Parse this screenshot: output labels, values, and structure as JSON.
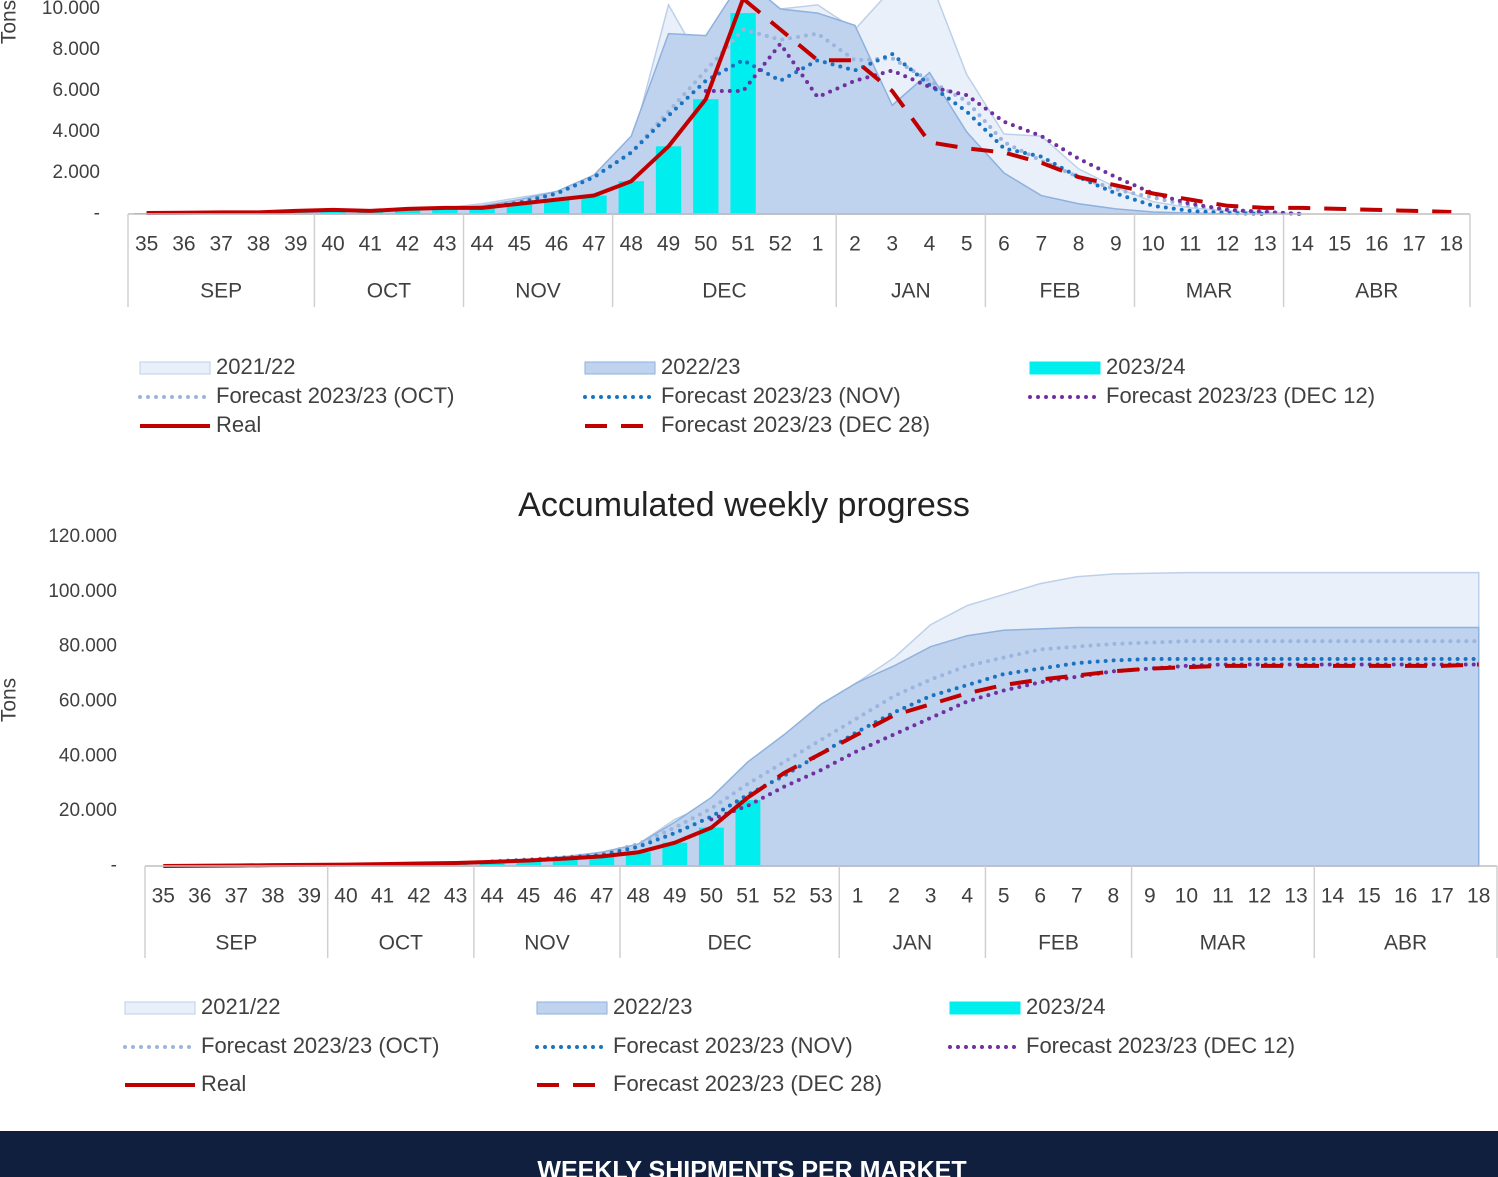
{
  "chart_data": [
    {
      "type": "combo",
      "y_label": "Tons",
      "categories": [
        "35",
        "36",
        "37",
        "38",
        "39",
        "40",
        "41",
        "42",
        "43",
        "44",
        "45",
        "46",
        "47",
        "48",
        "49",
        "50",
        "51",
        "52",
        "1",
        "2",
        "3",
        "4",
        "5",
        "6",
        "7",
        "8",
        "9",
        "10",
        "11",
        "12",
        "13",
        "14",
        "15",
        "16",
        "17",
        "18"
      ],
      "groups": [
        "SEP",
        "SEP",
        "SEP",
        "SEP",
        "SEP",
        "OCT",
        "OCT",
        "OCT",
        "OCT",
        "NOV",
        "NOV",
        "NOV",
        "NOV",
        "DEC",
        "DEC",
        "DEC",
        "DEC",
        "DEC",
        "DEC",
        "JAN",
        "JAN",
        "JAN",
        "JAN",
        "FEB",
        "FEB",
        "FEB",
        "FEB",
        "MAR",
        "MAR",
        "MAR",
        "MAR",
        "ABR",
        "ABR",
        "ABR",
        "ABR",
        "ABR"
      ],
      "ylim": [
        0,
        12000
      ],
      "yticks": [
        {
          "value": 0,
          "label": "-"
        },
        {
          "value": 2000,
          "label": "2.000"
        },
        {
          "value": 4000,
          "label": "4.000"
        },
        {
          "value": 6000,
          "label": "6.000"
        },
        {
          "value": 8000,
          "label": "8.000"
        },
        {
          "value": 10000,
          "label": "10.000"
        }
      ],
      "series": [
        {
          "name": "2021/22",
          "style": "area",
          "color": "#eaf0fa",
          "stroke": "#bdd0ea",
          "values": [
            50,
            50,
            80,
            80,
            100,
            150,
            150,
            250,
            300,
            500,
            800,
            1100,
            1600,
            3300,
            10200,
            7000,
            11500,
            10000,
            10200,
            9000,
            11000,
            11500,
            6800,
            3900,
            3800,
            2200,
            1300,
            600,
            300,
            150,
            80,
            0,
            null,
            null,
            null,
            null
          ]
        },
        {
          "name": "2022/23",
          "style": "area",
          "color": "#bfd3ee",
          "stroke": "#8eb1de",
          "values": [
            30,
            40,
            50,
            60,
            80,
            100,
            150,
            200,
            250,
            400,
            700,
            1100,
            1900,
            3800,
            8800,
            8700,
            11500,
            10000,
            9800,
            9200,
            5300,
            6900,
            4000,
            2000,
            900,
            500,
            250,
            100,
            50,
            0,
            null,
            null,
            null,
            null,
            null,
            null
          ]
        },
        {
          "name": "2023/24",
          "style": "bar",
          "color": "#00eeee",
          "values": [
            50,
            60,
            80,
            80,
            150,
            200,
            150,
            250,
            300,
            300,
            500,
            700,
            900,
            1600,
            3300,
            5600,
            9800,
            null,
            null,
            null,
            null,
            null,
            null,
            null,
            null,
            null,
            null,
            null,
            null,
            null,
            null,
            null,
            null,
            null,
            null,
            null
          ]
        },
        {
          "name": "Forecast 2023/23 (OCT)",
          "style": "line",
          "dash": "dotted",
          "color": "#9bb5dc",
          "values": [
            null,
            null,
            null,
            null,
            null,
            null,
            null,
            null,
            null,
            350,
            600,
            1000,
            1800,
            3000,
            5000,
            7000,
            9000,
            8500,
            8800,
            7500,
            7600,
            6500,
            5500,
            3500,
            2600,
            1800,
            1200,
            800,
            400,
            200,
            100,
            0,
            null,
            null,
            null,
            null
          ]
        },
        {
          "name": "Forecast 2023/23 (NOV)",
          "style": "line",
          "dash": "dotted",
          "color": "#1a73c0",
          "values": [
            null,
            null,
            null,
            null,
            null,
            null,
            null,
            null,
            null,
            300,
            550,
            1000,
            1800,
            3000,
            4800,
            6500,
            7500,
            6500,
            7500,
            7000,
            7800,
            6300,
            5000,
            3200,
            2800,
            1800,
            1000,
            400,
            150,
            50,
            0,
            null,
            null,
            null,
            null,
            null
          ]
        },
        {
          "name": "Forecast 2023/23 (DEC 12)",
          "style": "line",
          "dash": "dotted",
          "color": "#7030a0",
          "values": [
            null,
            null,
            null,
            null,
            null,
            null,
            null,
            null,
            null,
            null,
            null,
            null,
            null,
            null,
            null,
            6000,
            6000,
            8300,
            5700,
            6500,
            7000,
            6200,
            5800,
            4500,
            3800,
            2700,
            1800,
            1000,
            500,
            200,
            100,
            0,
            null,
            null,
            null,
            null
          ]
        },
        {
          "name": "Real",
          "style": "line",
          "dash": "solid",
          "color": "#c00000",
          "values": [
            50,
            60,
            80,
            80,
            150,
            200,
            150,
            250,
            300,
            300,
            500,
            700,
            900,
            1600,
            3300,
            5600,
            10500,
            null,
            null,
            null,
            null,
            null,
            null,
            null,
            null,
            null,
            null,
            null,
            null,
            null,
            null,
            null,
            null,
            null,
            null,
            null
          ]
        },
        {
          "name": "Forecast 2023/23 (DEC 28)",
          "style": "line",
          "dash": "dashed",
          "color": "#c00000",
          "values": [
            null,
            null,
            null,
            null,
            null,
            null,
            null,
            null,
            null,
            null,
            null,
            null,
            null,
            null,
            null,
            null,
            10500,
            9000,
            7500,
            7500,
            6000,
            3500,
            3200,
            3000,
            2500,
            1800,
            1400,
            1000,
            700,
            400,
            300,
            300,
            250,
            200,
            150,
            100
          ]
        }
      ]
    },
    {
      "type": "combo",
      "title": "Accumulated weekly progress",
      "y_label": "Tons",
      "categories": [
        "35",
        "36",
        "37",
        "38",
        "39",
        "40",
        "41",
        "42",
        "43",
        "44",
        "45",
        "46",
        "47",
        "48",
        "49",
        "50",
        "51",
        "52",
        "53",
        "1",
        "2",
        "3",
        "4",
        "5",
        "6",
        "7",
        "8",
        "9",
        "10",
        "11",
        "12",
        "13",
        "14",
        "15",
        "16",
        "17",
        "18"
      ],
      "groups": [
        "SEP",
        "SEP",
        "SEP",
        "SEP",
        "SEP",
        "OCT",
        "OCT",
        "OCT",
        "OCT",
        "NOV",
        "NOV",
        "NOV",
        "NOV",
        "DEC",
        "DEC",
        "DEC",
        "DEC",
        "DEC",
        "DEC",
        "JAN",
        "JAN",
        "JAN",
        "JAN",
        "FEB",
        "FEB",
        "FEB",
        "FEB",
        "MAR",
        "MAR",
        "MAR",
        "MAR",
        "MAR",
        "ABR",
        "ABR",
        "ABR",
        "ABR",
        "ABR"
      ],
      "ylim": [
        0,
        120000
      ],
      "yticks": [
        {
          "value": 0,
          "label": "-"
        },
        {
          "value": 20000,
          "label": "20.000"
        },
        {
          "value": 40000,
          "label": "40.000"
        },
        {
          "value": 60000,
          "label": "60.000"
        },
        {
          "value": 80000,
          "label": "80.000"
        },
        {
          "value": 100000,
          "label": "100.000"
        },
        {
          "value": 120000,
          "label": "120.000"
        }
      ],
      "series": [
        {
          "name": "2021/22",
          "style": "area",
          "color": "#eaf0fa",
          "stroke": "#bdd0ea",
          "values": [
            0,
            100,
            200,
            300,
            400,
            500,
            700,
            900,
            1200,
            1700,
            2500,
            3500,
            5000,
            8000,
            17000,
            23000,
            34000,
            44000,
            57000,
            67000,
            76000,
            88000,
            95000,
            99000,
            103000,
            105500,
            106500,
            106800,
            107000,
            107000,
            107000,
            107000,
            107000,
            107000,
            107000,
            107000,
            107000
          ]
        },
        {
          "name": "2022/23",
          "style": "area",
          "color": "#bfd3ee",
          "stroke": "#8eb1de",
          "values": [
            0,
            50,
            100,
            200,
            300,
            400,
            600,
            800,
            1000,
            1500,
            2200,
            3300,
            5000,
            8000,
            16000,
            25000,
            38000,
            48000,
            59000,
            67000,
            73000,
            80000,
            84000,
            86000,
            86500,
            87000,
            87000,
            87000,
            87000,
            87000,
            87000,
            87000,
            87000,
            87000,
            87000,
            87000,
            87000
          ]
        },
        {
          "name": "2023/24",
          "style": "bar",
          "color": "#00eeee",
          "values": [
            0,
            100,
            200,
            300,
            400,
            500,
            700,
            900,
            1100,
            1500,
            2000,
            2700,
            3500,
            5000,
            8500,
            14000,
            24000,
            null,
            null,
            null,
            null,
            null,
            null,
            null,
            null,
            null,
            null,
            null,
            null,
            null,
            null,
            null,
            null,
            null,
            null,
            null,
            null
          ]
        },
        {
          "name": "Forecast 2023/23 (OCT)",
          "style": "line",
          "dash": "dotted",
          "color": "#9bb5dc",
          "values": [
            null,
            null,
            null,
            null,
            null,
            null,
            null,
            null,
            null,
            1700,
            2400,
            3200,
            4500,
            8000,
            14000,
            21000,
            30000,
            38000,
            46000,
            54000,
            62000,
            68000,
            73000,
            76000,
            79000,
            80000,
            81000,
            81500,
            82000,
            82000,
            82000,
            82000,
            82000,
            82000,
            82000,
            82000,
            82000
          ]
        },
        {
          "name": "Forecast 2023/23 (NOV)",
          "style": "line",
          "dash": "dotted",
          "color": "#1a73c0",
          "values": [
            null,
            null,
            null,
            null,
            null,
            null,
            null,
            null,
            null,
            1600,
            2200,
            3000,
            4000,
            7000,
            12000,
            18000,
            26000,
            33000,
            41000,
            49000,
            56000,
            62000,
            66000,
            70000,
            72000,
            74000,
            75000,
            75500,
            75500,
            75500,
            75500,
            75500,
            75500,
            75500,
            75500,
            75500,
            75500
          ]
        },
        {
          "name": "Forecast 2023/23 (DEC 12)",
          "style": "line",
          "dash": "dotted",
          "color": "#7030a0",
          "values": [
            null,
            null,
            null,
            null,
            null,
            null,
            null,
            null,
            null,
            null,
            null,
            null,
            null,
            null,
            null,
            17000,
            22000,
            29000,
            35000,
            42000,
            48000,
            54000,
            60000,
            64000,
            67000,
            69000,
            71000,
            72000,
            73000,
            73500,
            73500,
            73500,
            73500,
            73500,
            73500,
            73500,
            73500
          ]
        },
        {
          "name": "Real",
          "style": "line",
          "dash": "solid",
          "color": "#c00000",
          "values": [
            0,
            100,
            200,
            300,
            400,
            500,
            700,
            900,
            1100,
            1500,
            2000,
            2700,
            3500,
            5000,
            8500,
            14000,
            25000,
            null,
            null,
            null,
            null,
            null,
            null,
            null,
            null,
            null,
            null,
            null,
            null,
            null,
            null,
            null,
            null,
            null,
            null,
            null,
            null
          ]
        },
        {
          "name": "Forecast 2023/23 (DEC 28)",
          "style": "line",
          "dash": "dashed",
          "color": "#c00000",
          "values": [
            null,
            null,
            null,
            null,
            null,
            null,
            null,
            null,
            null,
            null,
            null,
            null,
            null,
            null,
            null,
            null,
            25000,
            34000,
            41000,
            48000,
            55000,
            59000,
            63000,
            66000,
            68000,
            69500,
            71000,
            72000,
            72500,
            73000,
            73000,
            73000,
            73000,
            73000,
            73000,
            73000,
            73500
          ]
        }
      ]
    }
  ],
  "footer": {
    "text": "WEEKLY SHIPMENTS PER MARKET"
  }
}
